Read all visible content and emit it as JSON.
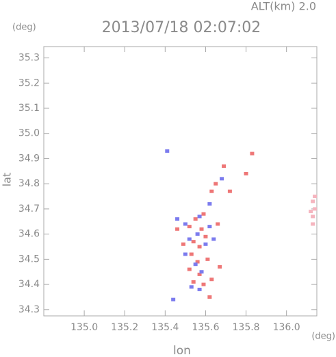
{
  "chart_data": {
    "type": "scatter",
    "title": "2013/07/18 02:07:02",
    "subtitle": "ALT(km)  2.0",
    "y_unit": "(deg)",
    "x_unit": "(deg)",
    "x_label": "lon",
    "y_label": "lat",
    "xlim": [
      134.8,
      136.15
    ],
    "ylim": [
      34.275,
      35.345
    ],
    "xticks": [
      {
        "value": 135.0,
        "label": "135.0"
      },
      135.2,
      135.4,
      135.6,
      135.8,
      {
        "value": 136.0,
        "label": "136.0"
      }
    ],
    "yticks": [
      34.3,
      34.4,
      34.5,
      34.6,
      34.7,
      34.8,
      34.9,
      {
        "value": 35.0,
        "label": "35.0"
      },
      35.1,
      35.2,
      35.3
    ],
    "series": [
      {
        "color": "#ee7777",
        "x": [
          135.83,
          135.69,
          135.65,
          135.63,
          135.59,
          135.55,
          135.52,
          135.58,
          135.6,
          135.54,
          135.57,
          135.53,
          135.56,
          135.61,
          135.67,
          135.52,
          135.57,
          135.63,
          135.59,
          135.54,
          135.49,
          135.46,
          135.66,
          135.72,
          135.8,
          135.62
        ],
        "values": [
          34.92,
          34.87,
          34.8,
          34.77,
          34.68,
          34.66,
          34.63,
          34.62,
          34.59,
          34.57,
          34.55,
          34.52,
          34.49,
          34.5,
          34.47,
          34.46,
          34.44,
          34.42,
          34.4,
          34.41,
          34.56,
          34.62,
          34.64,
          34.77,
          34.84,
          34.35
        ]
      },
      {
        "color": "#7b7bee",
        "x": [
          135.41,
          135.46,
          135.5,
          135.57,
          135.62,
          135.56,
          135.52,
          135.6,
          135.64,
          135.55,
          135.5,
          135.58,
          135.53,
          135.68,
          135.62,
          135.44,
          135.57
        ],
        "values": [
          34.93,
          34.66,
          34.64,
          34.67,
          34.63,
          34.6,
          34.58,
          34.56,
          34.58,
          34.48,
          34.52,
          34.45,
          34.39,
          34.82,
          34.72,
          34.34,
          34.38
        ]
      },
      {
        "color": "#f5b5bf",
        "x": [
          136.13,
          136.14,
          136.13,
          136.14,
          136.12,
          136.13
        ],
        "values": [
          34.73,
          34.7,
          34.67,
          34.75,
          34.69,
          34.64
        ]
      }
    ]
  }
}
